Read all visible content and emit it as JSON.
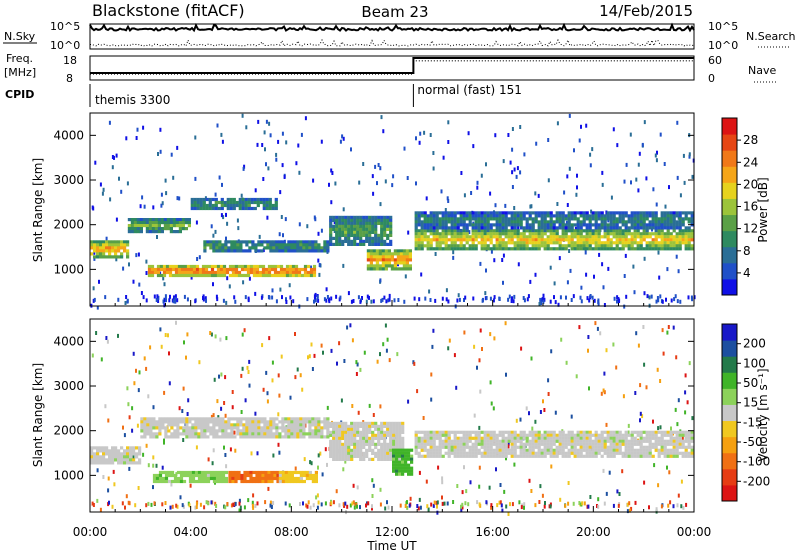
{
  "header": {
    "station": "Blackstone (fitACF)",
    "beam": "Beam 23",
    "date": "14/Feb/2015"
  },
  "strips": {
    "nsky_label": "N.Sky",
    "nsky_ticks": [
      "10^5",
      "10^0"
    ],
    "nsearch_label": "N.Search",
    "nsearch_ticks": [
      "10^5",
      "10^0"
    ],
    "freq_label": "Freq.",
    "freq_unit": "[MHz]",
    "freq_ticks": [
      "18",
      "8"
    ],
    "nave_label": "Nave",
    "nave_ticks": [
      "60",
      "0"
    ],
    "cpid_label": "CPID",
    "cpid_modes": [
      "themis 3300",
      "normal (fast) 151"
    ],
    "mode_switch_hour": 12.85,
    "nave_values": [
      15,
      48
    ]
  },
  "chart_data": [
    {
      "type": "heatmap",
      "panel": "power",
      "ylabel": "Slant Range [km]",
      "yticks": [
        1000,
        2000,
        3000,
        4000
      ],
      "ylim": [
        180,
        4500
      ],
      "xlim": [
        0,
        24
      ],
      "colorbar": {
        "label": "Power [dB]",
        "ticks": [
          "4",
          "8",
          "12",
          "16",
          "20",
          "24",
          "28"
        ],
        "range": [
          0,
          32
        ],
        "colors": [
          "#1010e6",
          "#2050c8",
          "#2a6e96",
          "#2e8a60",
          "#5aa046",
          "#9cc43a",
          "#e6d21e",
          "#f5a518",
          "#f07818",
          "#e64614",
          "#dc1414"
        ]
      },
      "bands": [
        {
          "x": [
            0.0,
            1.5
          ],
          "y": [
            1250,
            1650
          ],
          "level": 0.72
        },
        {
          "x": [
            1.5,
            4.0
          ],
          "y": [
            1800,
            2150
          ],
          "level": 0.45
        },
        {
          "x": [
            4.0,
            7.5
          ],
          "y": [
            2300,
            2600
          ],
          "level": 0.35
        },
        {
          "x": [
            2.3,
            9.0
          ],
          "y": [
            800,
            1100
          ],
          "level": 0.85
        },
        {
          "x": [
            4.5,
            9.5
          ],
          "y": [
            1350,
            1650
          ],
          "level": 0.35
        },
        {
          "x": [
            9.5,
            12.0
          ],
          "y": [
            1500,
            2200
          ],
          "level": 0.4
        },
        {
          "x": [
            11.0,
            12.8
          ],
          "y": [
            1000,
            1450
          ],
          "level": 0.75
        },
        {
          "x": [
            12.9,
            24.0
          ],
          "y": [
            1400,
            1900
          ],
          "level": 0.65
        },
        {
          "x": [
            12.9,
            24.0
          ],
          "y": [
            1900,
            2300
          ],
          "level": 0.3
        }
      ]
    },
    {
      "type": "heatmap",
      "panel": "velocity",
      "ylabel": "Slant Range [km]",
      "yticks": [
        1000,
        2000,
        3000,
        4000
      ],
      "ylim": [
        180,
        4500
      ],
      "xlim": [
        0,
        24
      ],
      "colorbar": {
        "label": "Velocity [m s⁻¹]",
        "ticks": [
          "200",
          "100",
          "50",
          "15",
          "-15",
          "-50",
          "-100",
          "-200"
        ],
        "colors": [
          "#1818c8",
          "#1c4fa0",
          "#237a4a",
          "#40b428",
          "#8cd25a",
          "#c8c8c8",
          "#f0c820",
          "#f5a010",
          "#f07014",
          "#e63c14",
          "#dc1414"
        ]
      },
      "bands": [
        {
          "x": [
            0.0,
            2.0
          ],
          "y": [
            1250,
            1650
          ],
          "color": 5
        },
        {
          "x": [
            2.5,
            5.5
          ],
          "y": [
            800,
            1100
          ],
          "color": 4
        },
        {
          "x": [
            5.5,
            7.5
          ],
          "y": [
            800,
            1100
          ],
          "color": 8
        },
        {
          "x": [
            7.5,
            9.0
          ],
          "y": [
            800,
            1100
          ],
          "color": 6
        },
        {
          "x": [
            2.0,
            9.5
          ],
          "y": [
            1800,
            2300
          ],
          "color": 5
        },
        {
          "x": [
            9.5,
            12.5
          ],
          "y": [
            1300,
            2200
          ],
          "color": 5
        },
        {
          "x": [
            12.0,
            12.8
          ],
          "y": [
            1000,
            1600
          ],
          "color": 3
        },
        {
          "x": [
            12.9,
            24.0
          ],
          "y": [
            1400,
            2000
          ],
          "color": 5
        }
      ]
    }
  ],
  "xaxis": {
    "label": "Time UT",
    "ticks": [
      "00:00",
      "04:00",
      "08:00",
      "12:00",
      "16:00",
      "20:00",
      "00:00"
    ]
  }
}
